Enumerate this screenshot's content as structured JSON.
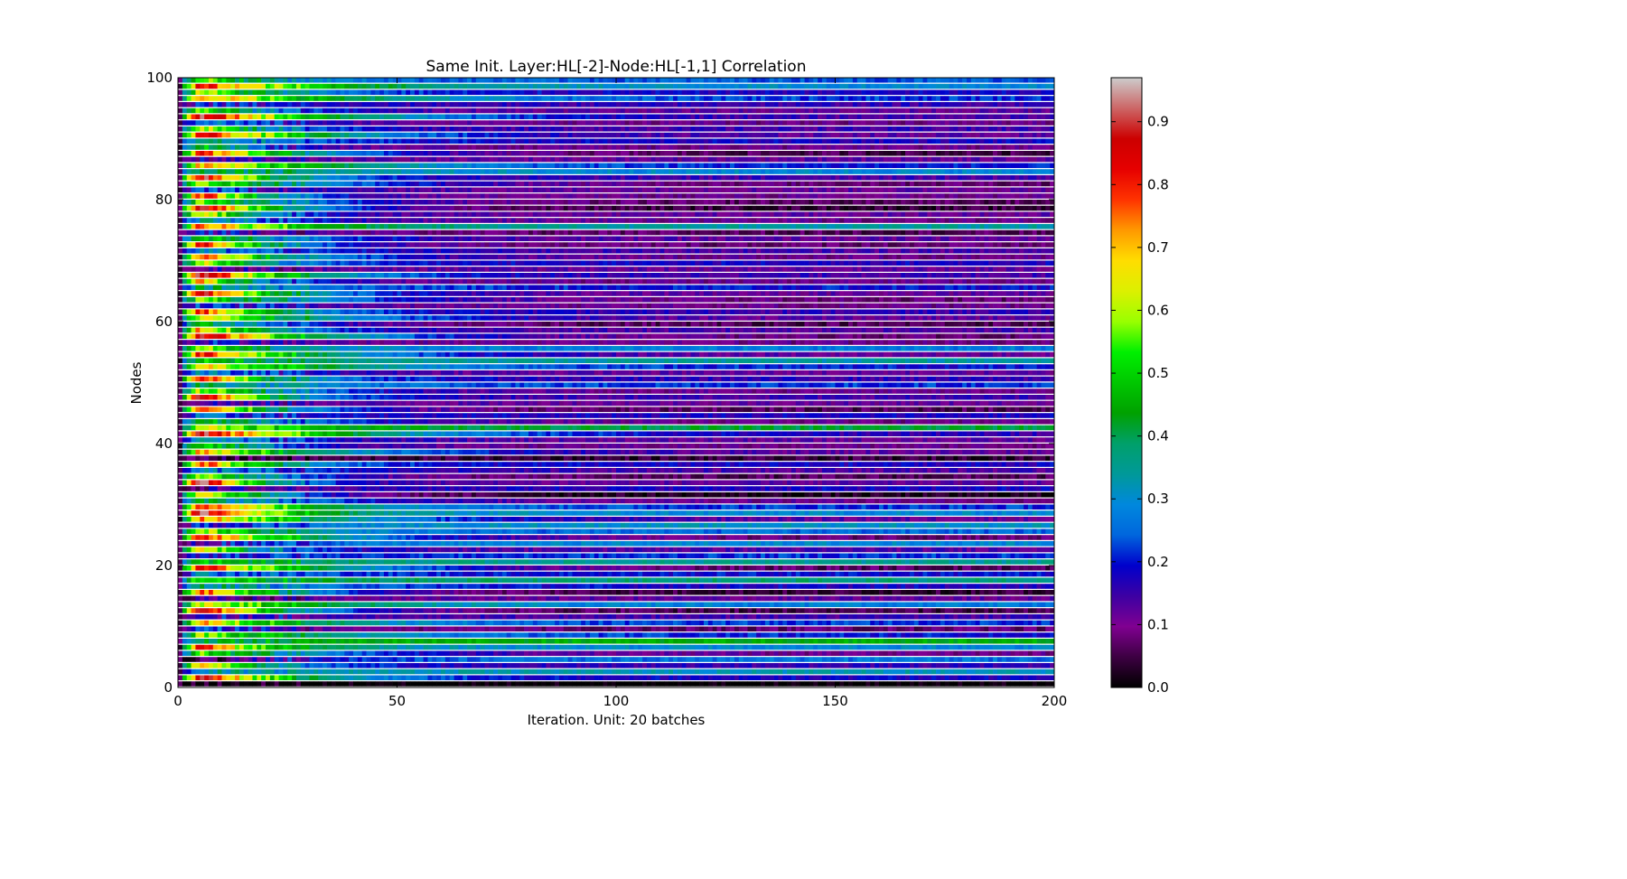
{
  "chart_data": {
    "type": "heatmap",
    "title": "Same Init. Layer:HL[-2]-Node:HL[-1,1] Correlation",
    "xlabel": "Iteration. Unit: 20 batches",
    "ylabel": "Nodes",
    "xlim": [
      0,
      200
    ],
    "ylim": [
      0,
      100
    ],
    "x_ticks": [
      0,
      50,
      100,
      150,
      200
    ],
    "y_ticks": [
      0,
      20,
      40,
      60,
      80,
      100
    ],
    "n_iterations": 200,
    "n_nodes": 100,
    "colormap": "nipy_spectral",
    "colorbar": {
      "vmin": 0.0,
      "vmax": 0.97,
      "ticks": [
        "0.0",
        "0.1",
        "0.2",
        "0.3",
        "0.4",
        "0.5",
        "0.6",
        "0.7",
        "0.8",
        "0.9"
      ]
    },
    "initial_peak_values": [
      0.0,
      0.88,
      0.35,
      0.72,
      0.05,
      0.55,
      0.8,
      0.45,
      0.6,
      0.25,
      0.7,
      0.18,
      0.9,
      0.65,
      0.1,
      0.78,
      0.4,
      0.58,
      0.3,
      0.82,
      0.5,
      0.22,
      0.68,
      0.15,
      0.84,
      0.62,
      0.2,
      0.75,
      0.93,
      0.85,
      0.42,
      0.7,
      0.12,
      0.95,
      0.6,
      0.3,
      0.8,
      0.08,
      0.72,
      0.55,
      0.35,
      0.88,
      0.65,
      0.48,
      0.25,
      0.78,
      0.15,
      0.9,
      0.6,
      0.4,
      0.82,
      0.3,
      0.7,
      0.5,
      0.85,
      0.6,
      0.2,
      0.9,
      0.72,
      0.45,
      0.65,
      0.8,
      0.25,
      0.55,
      0.88,
      0.4,
      0.7,
      0.93,
      0.15,
      0.62,
      0.75,
      0.3,
      0.85,
      0.5,
      0.2,
      0.78,
      0.35,
      0.68,
      0.9,
      0.55,
      0.82,
      0.25,
      0.6,
      0.88,
      0.45,
      0.72,
      0.15,
      0.8,
      0.5,
      0.38,
      0.85,
      0.65,
      0.3,
      0.9,
      0.55,
      0.2,
      0.76,
      0.62,
      0.82,
      0.6
    ],
    "late_values": [
      0.0,
      0.18,
      0.33,
      0.16,
      0.27,
      0.1,
      0.3,
      0.46,
      0.2,
      0.08,
      0.22,
      0.15,
      0.05,
      0.28,
      0.12,
      0.04,
      0.18,
      0.38,
      0.2,
      0.06,
      0.36,
      0.22,
      0.14,
      0.3,
      0.08,
      0.26,
      0.32,
      0.12,
      0.3,
      0.22,
      0.1,
      0.02,
      0.18,
      0.12,
      0.06,
      0.14,
      0.18,
      0.04,
      0.12,
      0.1,
      0.12,
      0.16,
      0.42,
      0.1,
      0.18,
      0.06,
      0.12,
      0.15,
      0.1,
      0.22,
      0.16,
      0.12,
      0.2,
      0.35,
      0.12,
      0.28,
      0.1,
      0.08,
      0.14,
      0.06,
      0.12,
      0.16,
      0.1,
      0.08,
      0.12,
      0.2,
      0.1,
      0.15,
      0.12,
      0.18,
      0.1,
      0.14,
      0.08,
      0.12,
      0.06,
      0.35,
      0.1,
      0.12,
      0.04,
      0.06,
      0.1,
      0.12,
      0.08,
      0.15,
      0.3,
      0.2,
      0.12,
      0.05,
      0.1,
      0.18,
      0.12,
      0.15,
      0.1,
      0.14,
      0.12,
      0.16,
      0.22,
      0.18,
      0.3,
      0.25
    ]
  }
}
